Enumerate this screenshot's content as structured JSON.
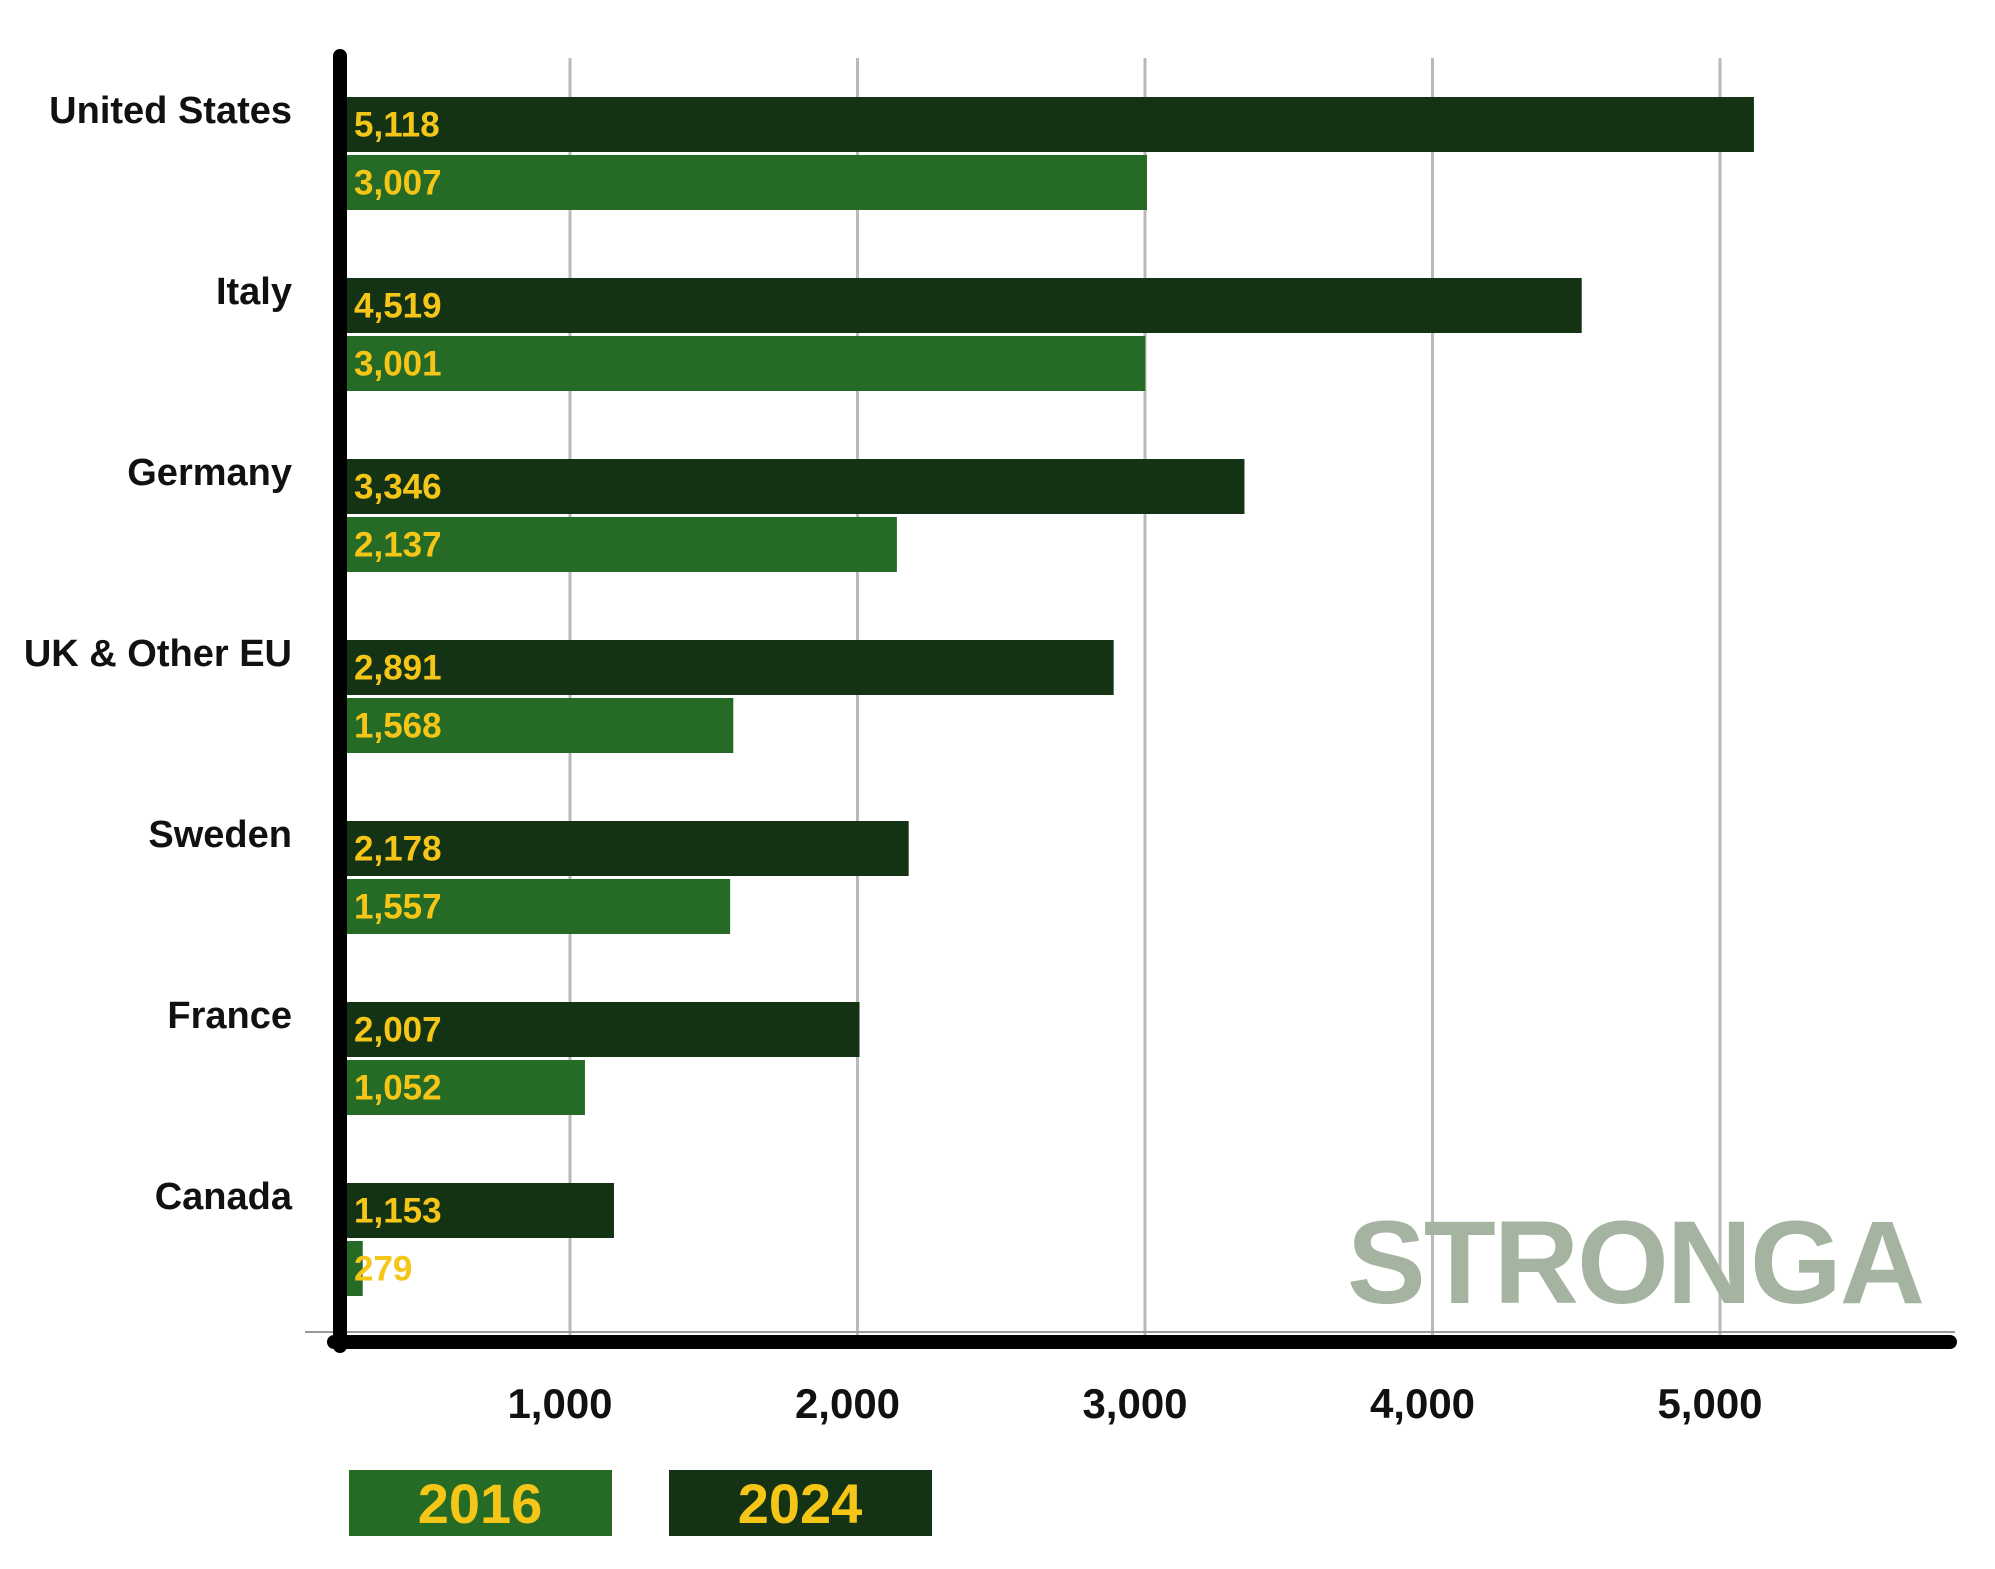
{
  "chart_data": {
    "type": "bar",
    "orientation": "horizontal",
    "categories": [
      "United States",
      "Italy",
      "Germany",
      "UK & Other EU",
      "Sweden",
      "France",
      "Canada"
    ],
    "series": [
      {
        "name": "2024",
        "color": "#143314",
        "values": [
          5118,
          4519,
          3346,
          2891,
          2178,
          2007,
          1153
        ],
        "labels": [
          "5,118",
          "4,519",
          "3,346",
          "2,891",
          "2,178",
          "2,007",
          "1,153"
        ]
      },
      {
        "name": "2016",
        "color": "#256a25",
        "values": [
          3007,
          3001,
          2137,
          1568,
          1557,
          1052,
          279
        ],
        "labels": [
          "3,007",
          "3,001",
          "2,137",
          "1,568",
          "1,557",
          "1,052",
          "279"
        ]
      }
    ],
    "x_ticks": [
      1000,
      2000,
      3000,
      4000,
      5000
    ],
    "x_tick_labels": [
      "1,000",
      "2,000",
      "3,000",
      "4,000",
      "5,000"
    ],
    "xlim": [
      200,
      5900
    ],
    "grid": true,
    "legend": {
      "placement": "bottom-left",
      "entries": [
        "2016",
        "2024"
      ]
    },
    "label_color": "#f5c518",
    "title": "",
    "xlabel": "",
    "ylabel": ""
  },
  "watermark": {
    "text": "STRONGA",
    "color": "#a4b4a1"
  }
}
